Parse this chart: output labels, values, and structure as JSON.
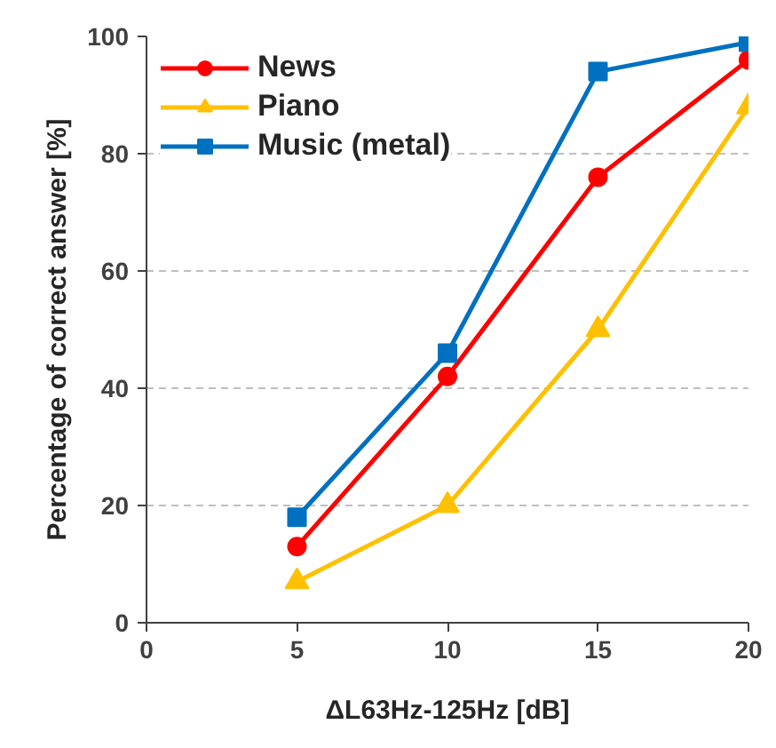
{
  "chart_data": {
    "type": "line",
    "xlabel": "ΔL63Hz-125Hz [dB]",
    "ylabel": "Percentage of correct answer [%]",
    "x": [
      5,
      10,
      15,
      20
    ],
    "series": [
      {
        "name": "News",
        "color": "#ff0000",
        "marker": "circle",
        "values": [
          13,
          42,
          76,
          96
        ]
      },
      {
        "name": "Piano",
        "color": "#ffc000",
        "marker": "triangle",
        "values": [
          7,
          20,
          50,
          88
        ]
      },
      {
        "name": "Music (metal)",
        "color": "#0070c0",
        "marker": "square",
        "values": [
          18,
          46,
          94,
          99
        ]
      }
    ],
    "xlim": [
      0,
      20
    ],
    "ylim": [
      0,
      100
    ],
    "xticks": [
      0,
      5,
      10,
      15,
      20
    ],
    "yticks": [
      0,
      20,
      40,
      60,
      80,
      100
    ],
    "grid": "y",
    "legend": "top left",
    "line_style": "solid"
  }
}
